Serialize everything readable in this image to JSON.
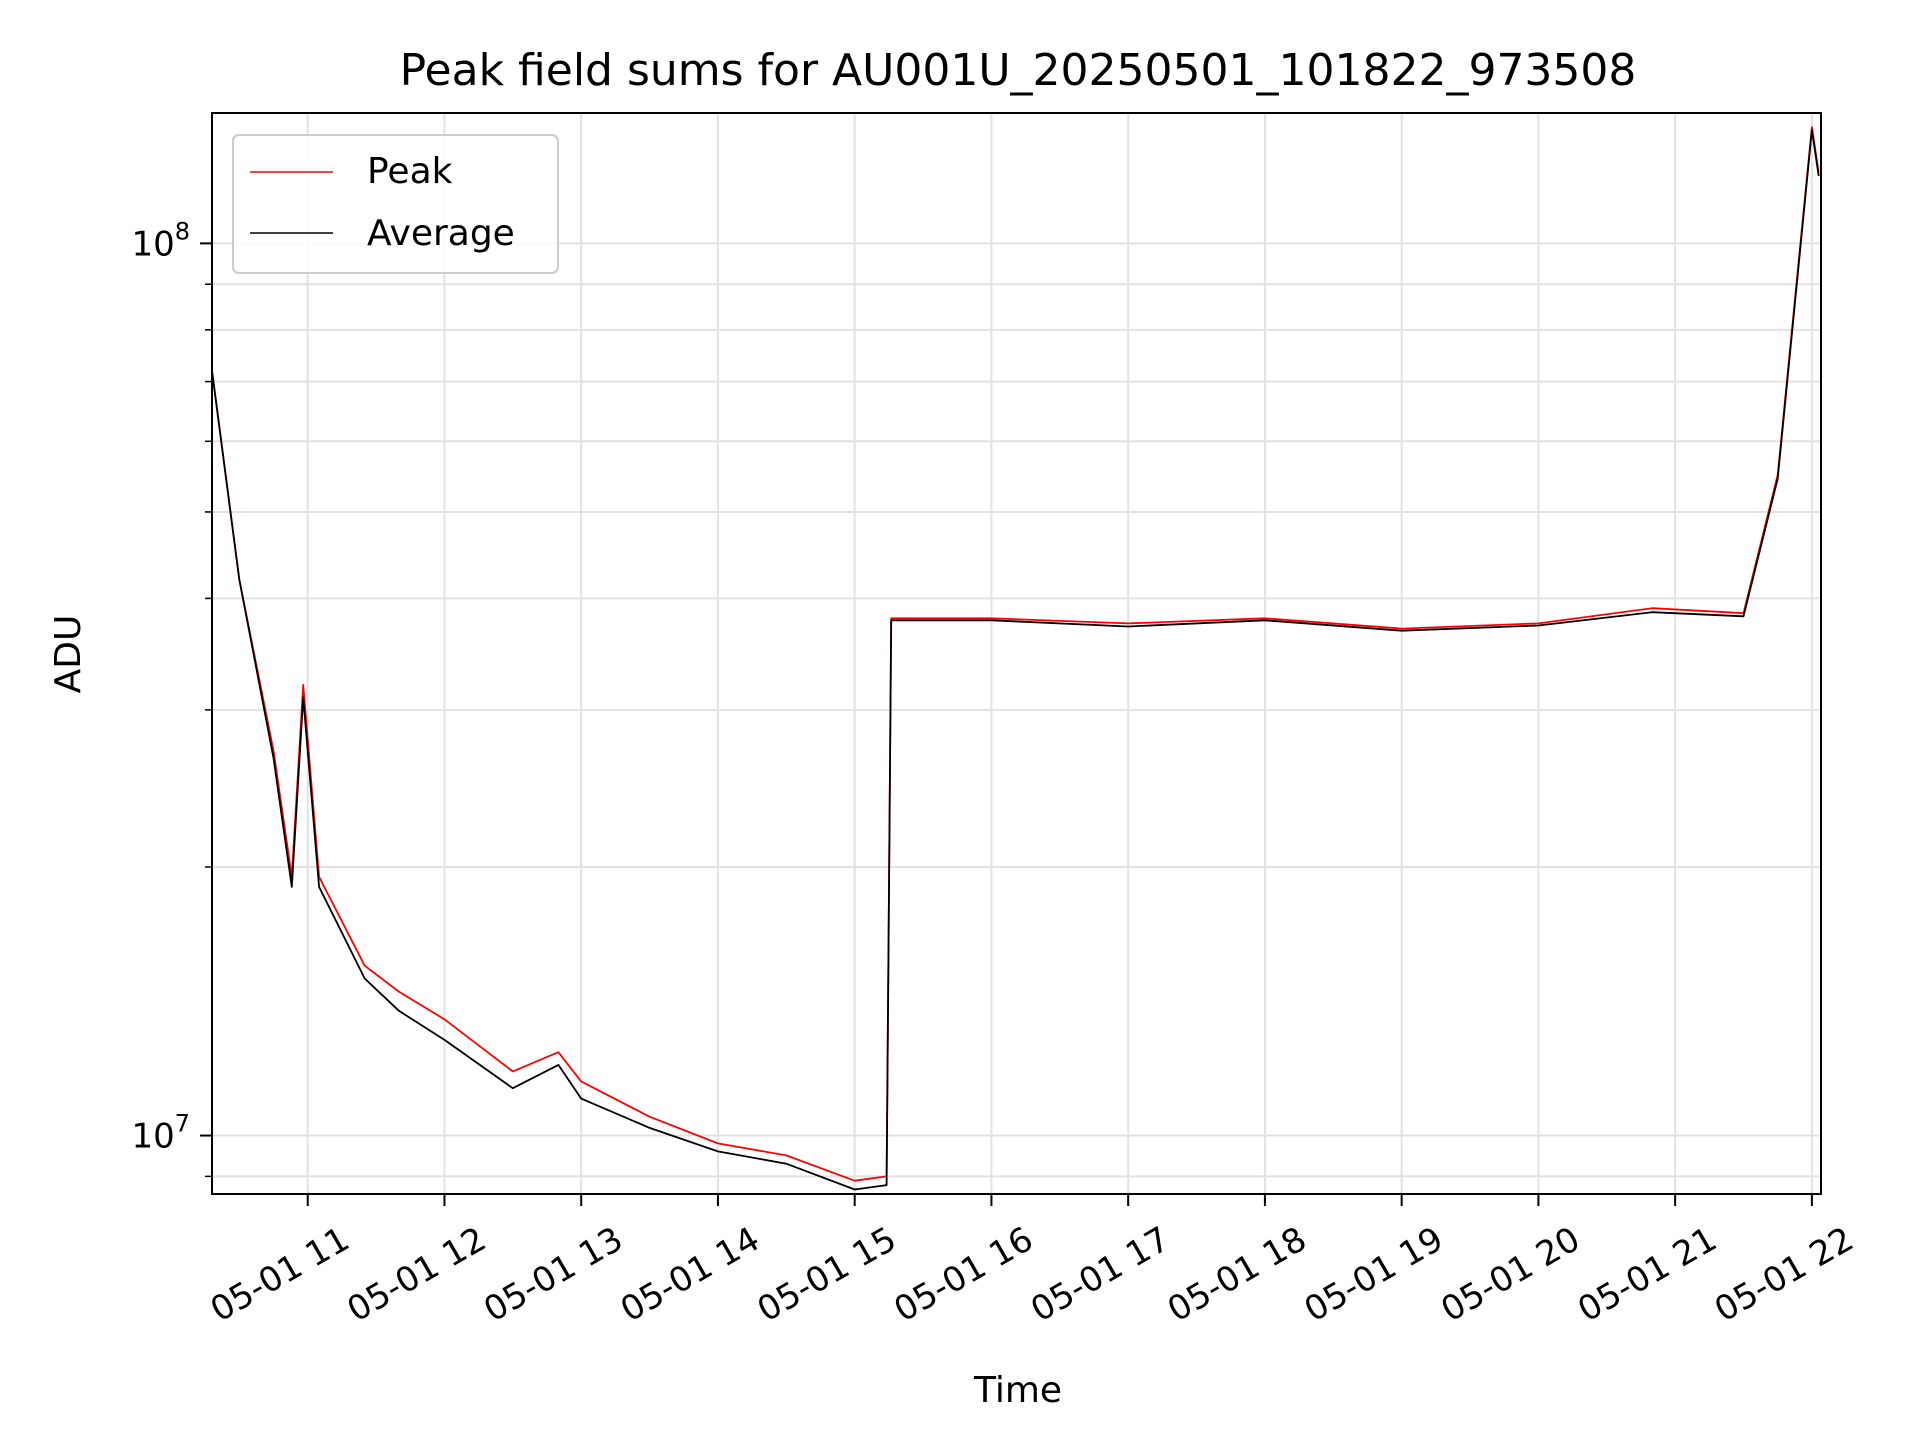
{
  "chart_data": {
    "type": "line",
    "title": "Peak field sums for AU001U_20250501_101822_973508",
    "xlabel": "Time",
    "ylabel": "ADU",
    "x_axis_kind": "time",
    "xlim": [
      "2025-05-01 10:18",
      "2025-05-01 22:04"
    ],
    "ylim": [
      8600000,
      140000000
    ],
    "y_scale": "log",
    "grid": true,
    "legend_position": "upper left",
    "x_ticks": [
      "05-01 11",
      "05-01 12",
      "05-01 13",
      "05-01 14",
      "05-01 15",
      "05-01 16",
      "05-01 17",
      "05-01 18",
      "05-01 19",
      "05-01 20",
      "05-01 21",
      "05-01 22"
    ],
    "y_ticks": [
      {
        "base": "10",
        "exp": "7",
        "value": 10000000
      },
      {
        "base": "10",
        "exp": "8",
        "value": 100000000
      }
    ],
    "x": [
      "2025-05-01 10:18",
      "2025-05-01 10:30",
      "2025-05-01 10:45",
      "2025-05-01 10:53",
      "2025-05-01 10:58",
      "2025-05-01 11:05",
      "2025-05-01 11:25",
      "2025-05-01 11:40",
      "2025-05-01 12:00",
      "2025-05-01 12:30",
      "2025-05-01 12:50",
      "2025-05-01 13:00",
      "2025-05-01 13:30",
      "2025-05-01 14:00",
      "2025-05-01 14:30",
      "2025-05-01 15:00",
      "2025-05-01 15:14",
      "2025-05-01 15:16",
      "2025-05-01 16:00",
      "2025-05-01 17:00",
      "2025-05-01 18:00",
      "2025-05-01 19:00",
      "2025-05-01 20:00",
      "2025-05-01 20:50",
      "2025-05-01 21:30",
      "2025-05-01 21:45",
      "2025-05-01 22:00",
      "2025-05-01 22:03"
    ],
    "series": [
      {
        "name": "Peak",
        "color": "#ff0000",
        "values": [
          72000000,
          42000000,
          27000000,
          19500000,
          32000000,
          19500000,
          15500000,
          14500000,
          13500000,
          11800000,
          12400000,
          11500000,
          10500000,
          9800000,
          9500000,
          8900000,
          9000000,
          38000000,
          38000000,
          37500000,
          38000000,
          37000000,
          37500000,
          39000000,
          38500000,
          55000000,
          135000000,
          120000000
        ]
      },
      {
        "name": "Average",
        "color": "#000000",
        "values": [
          72000000,
          42000000,
          26500000,
          19000000,
          31000000,
          19000000,
          15000000,
          13800000,
          12800000,
          11300000,
          12000000,
          11000000,
          10200000,
          9600000,
          9300000,
          8700000,
          8800000,
          37800000,
          37800000,
          37200000,
          37800000,
          36800000,
          37300000,
          38600000,
          38200000,
          54500000,
          134000000,
          119000000
        ]
      }
    ]
  }
}
